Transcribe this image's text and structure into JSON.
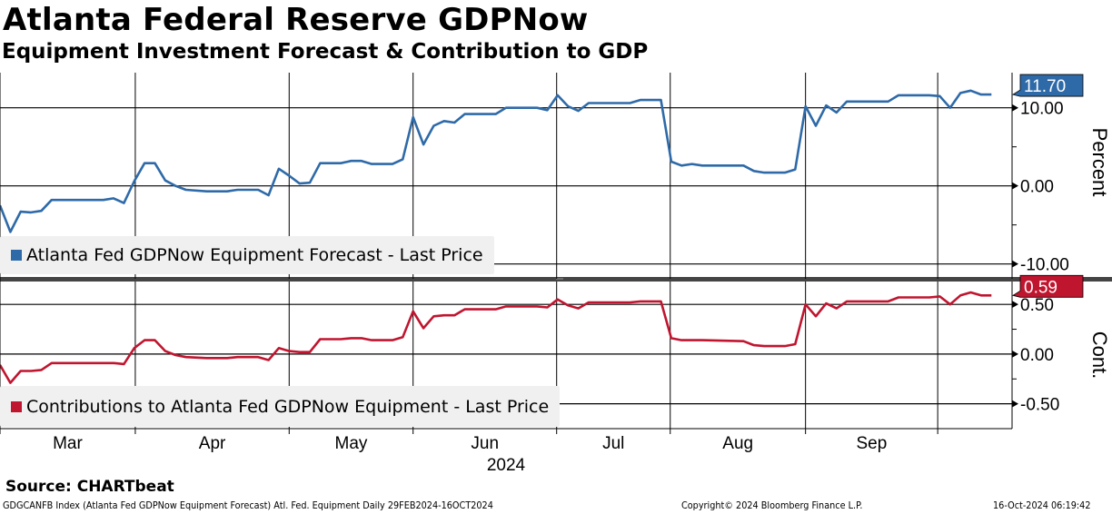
{
  "header": {
    "title": "Atlanta Federal Reserve GDPNow",
    "subtitle": "Equipment Investment Forecast & Contribution to GDP"
  },
  "chart_data": [
    {
      "type": "line",
      "panel": "top",
      "ylabel": "Percent",
      "ylim": [
        -11.9,
        14.5
      ],
      "yticks": [
        10,
        0,
        -10
      ],
      "ytick_labels": [
        "10.00",
        "0.00",
        "-10.00"
      ],
      "grid": true,
      "legend": "Atlanta Fed GDPNow Equipment Forecast - Last Price",
      "legend_position": "bottom-left",
      "color": "#2e6aa8",
      "last_value_label": "11.70",
      "x": [
        0,
        1,
        2,
        3,
        4,
        5,
        10,
        11,
        12,
        13,
        14,
        15,
        16,
        17,
        18,
        20,
        22,
        23,
        25,
        26,
        27,
        28,
        29,
        30,
        31,
        33,
        34,
        35,
        36,
        38,
        39,
        40,
        41,
        42,
        43,
        44,
        45,
        48,
        49,
        52,
        53,
        54,
        55,
        56,
        57,
        61,
        62,
        64,
        65,
        66,
        67,
        68,
        72,
        73,
        74,
        76,
        77,
        78,
        79,
        80,
        81,
        82,
        86,
        87,
        90,
        91,
        92,
        93,
        94,
        95,
        96
      ],
      "values": [
        -2.5,
        -5.9,
        -3.3,
        -3.4,
        -3.2,
        -1.8,
        -1.8,
        -1.6,
        -2.2,
        0.6,
        2.9,
        2.9,
        0.7,
        0.0,
        -0.5,
        -0.7,
        -0.7,
        -0.5,
        -0.5,
        -1.2,
        2.2,
        1.3,
        0.3,
        0.4,
        2.9,
        2.9,
        3.2,
        3.2,
        2.8,
        2.8,
        3.4,
        8.8,
        5.3,
        7.7,
        8.3,
        8.1,
        9.2,
        9.2,
        10.0,
        10.0,
        9.7,
        11.6,
        10.2,
        9.6,
        10.6,
        10.6,
        11.0,
        11.0,
        3.1,
        2.6,
        2.8,
        2.6,
        2.6,
        1.9,
        1.7,
        1.7,
        2.1,
        10.2,
        7.7,
        10.3,
        9.4,
        10.8,
        10.8,
        11.6,
        11.6,
        11.5,
        10.0,
        11.9,
        12.2,
        11.7,
        11.7
      ]
    },
    {
      "type": "line",
      "panel": "bottom",
      "ylabel": "Cont.",
      "ylim": [
        -0.75,
        0.73
      ],
      "yticks": [
        0.5,
        0,
        -0.5
      ],
      "ytick_labels": [
        "0.50",
        "0.00",
        "-0.50"
      ],
      "grid": true,
      "legend": "Contributions to Atlanta Fed GDPNow Equipment - Last Price",
      "legend_position": "bottom-left",
      "color": "#c0152f",
      "last_value_label": "0.59",
      "x": [
        0,
        1,
        2,
        3,
        4,
        5,
        10,
        11,
        12,
        13,
        14,
        15,
        16,
        17,
        18,
        20,
        22,
        23,
        25,
        26,
        27,
        28,
        29,
        30,
        31,
        33,
        34,
        35,
        36,
        38,
        39,
        40,
        41,
        42,
        43,
        44,
        45,
        48,
        49,
        52,
        53,
        54,
        55,
        56,
        57,
        61,
        62,
        64,
        65,
        66,
        67,
        68,
        72,
        73,
        74,
        76,
        77,
        78,
        79,
        80,
        81,
        82,
        86,
        87,
        90,
        91,
        92,
        93,
        94,
        95,
        96
      ],
      "values": [
        -0.11,
        -0.29,
        -0.17,
        -0.17,
        -0.16,
        -0.09,
        -0.09,
        -0.09,
        -0.1,
        0.06,
        0.14,
        0.14,
        0.03,
        -0.01,
        -0.03,
        -0.04,
        -0.04,
        -0.03,
        -0.03,
        -0.06,
        0.06,
        0.03,
        0.02,
        0.02,
        0.15,
        0.15,
        0.16,
        0.16,
        0.14,
        0.14,
        0.17,
        0.43,
        0.26,
        0.38,
        0.39,
        0.39,
        0.45,
        0.45,
        0.48,
        0.48,
        0.47,
        0.55,
        0.49,
        0.46,
        0.52,
        0.52,
        0.53,
        0.53,
        0.16,
        0.14,
        0.14,
        0.14,
        0.13,
        0.09,
        0.08,
        0.08,
        0.1,
        0.5,
        0.38,
        0.51,
        0.46,
        0.53,
        0.53,
        0.57,
        0.57,
        0.58,
        0.5,
        0.59,
        0.62,
        0.59,
        0.59
      ]
    }
  ],
  "xaxis": {
    "xlim": [
      0,
      98
    ],
    "month_boundaries": [
      0,
      13.1,
      28,
      40,
      53.9,
      64.9,
      78,
      90.8
    ],
    "months": [
      "Mar",
      "Apr",
      "May",
      "Jun",
      "Jul",
      "Aug",
      "Sep"
    ],
    "year": "2024"
  },
  "footer": {
    "source": "Source: CHARTbeat",
    "index_info": "GDGCANFB Index (Atlanta Fed GDPNow Equipment Forecast) Atl. Fed. Equipment  Daily 29FEB2024-16OCT2024",
    "copyright": "Copyright© 2024 Bloomberg Finance L.P.",
    "timestamp": "16-Oct-2024 06:19:42"
  }
}
